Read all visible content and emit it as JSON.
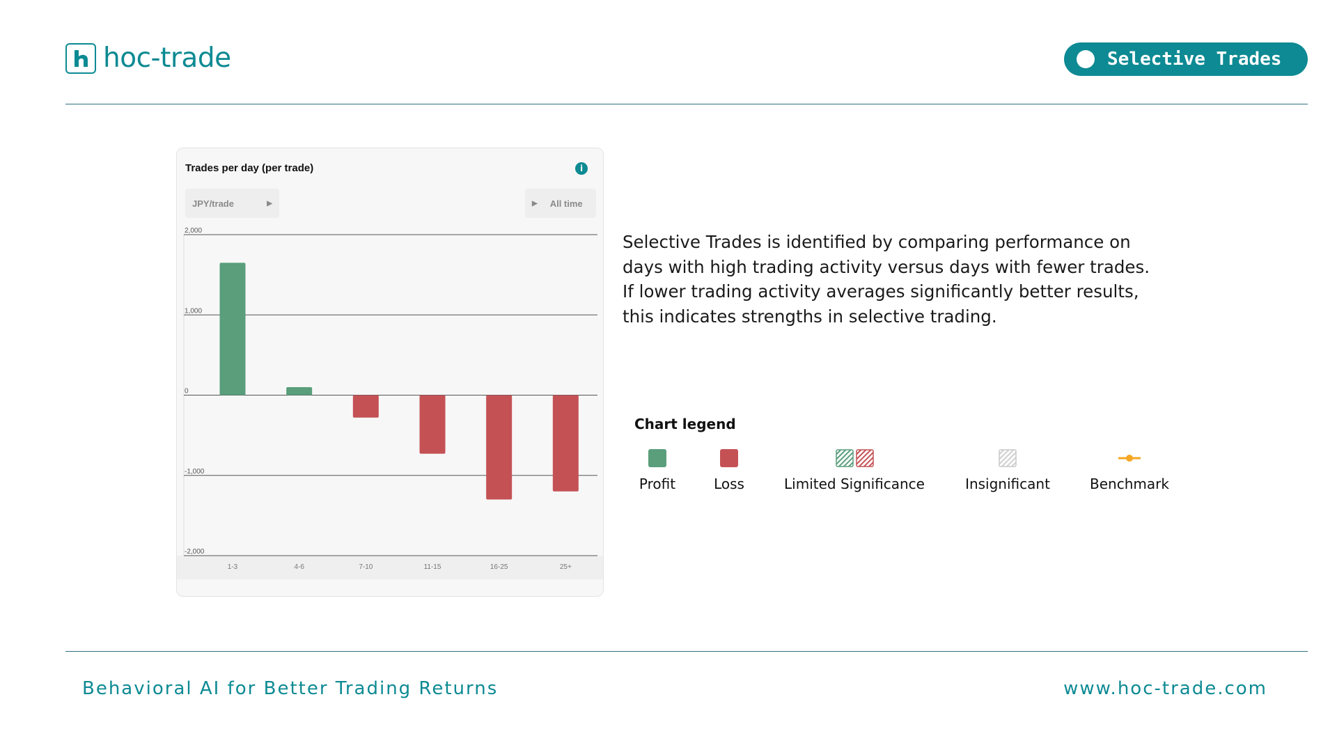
{
  "header": {
    "brand": "hoc-trade",
    "badge_label": "Selective Trades"
  },
  "card": {
    "title": "Trades per day (per trade)",
    "unit_dropdown": "JPY/trade",
    "period_dropdown": "All time"
  },
  "chart_data": {
    "type": "bar",
    "title": "Trades per day (per trade)",
    "xlabel": "",
    "ylabel": "JPY/trade",
    "categories": [
      "1-3",
      "4-6",
      "7-10",
      "11-15",
      "16-25",
      "25+"
    ],
    "values": [
      1650,
      100,
      -280,
      -730,
      -1300,
      -1200
    ],
    "ylim": [
      -2000,
      2000
    ],
    "yticks": [
      2000,
      1000,
      0,
      -1000,
      -2000
    ],
    "ytick_labels": [
      "2,000",
      "1,000",
      "0",
      "-1,000",
      "-2,000"
    ],
    "grid": true,
    "colors": {
      "profit": "#5a9e7c",
      "loss": "#c45255"
    }
  },
  "description": "Selective Trades is identified by comparing performance on days with high trading activity versus days with fewer trades. If lower trading activity averages significantly better results, this indicates strengths in selective trading.",
  "legend": {
    "title": "Chart legend",
    "items": [
      {
        "label": "Profit",
        "icon": "profit-swatch",
        "color": "#5a9e7c"
      },
      {
        "label": "Loss",
        "icon": "loss-swatch",
        "color": "#c45255"
      },
      {
        "label": "Limited Significance",
        "icon": "hatched-swatch"
      },
      {
        "label": "Insignificant",
        "icon": "gray-hatched-swatch"
      },
      {
        "label": "Benchmark",
        "icon": "benchmark-line-icon",
        "color": "#f5a623"
      }
    ]
  },
  "footer": {
    "tagline": "Behavioral AI for Better Trading Returns",
    "url": "www.hoc-trade.com"
  },
  "colors": {
    "accent": "#0d8a93",
    "rule": "#2f6f80"
  }
}
